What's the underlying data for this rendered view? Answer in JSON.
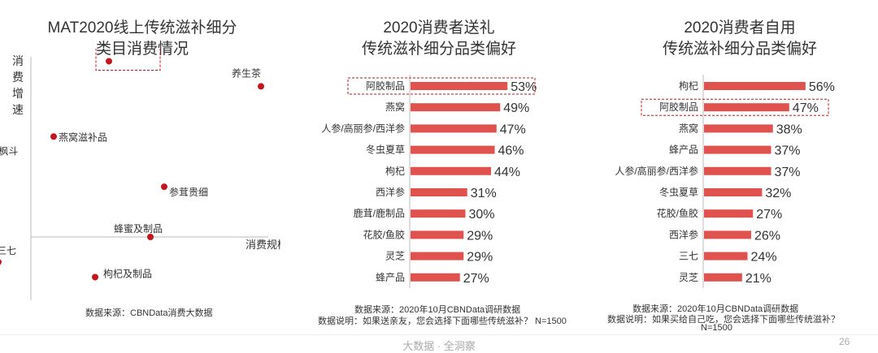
{
  "page_number": "26",
  "footer": "大数据 · 全洞察",
  "colors": {
    "bar": "#e0524e",
    "dot": "#c3161c",
    "box": "#c3161c",
    "axis": "#bbbbbb"
  },
  "chart_data": [
    {
      "type": "scatter",
      "title_lines": [
        "MAT2020线上传统滋补细分",
        "类目消费情况"
      ],
      "xlabel": "消费规模",
      "ylabel": "消费增速",
      "ylabel_chars": [
        "消",
        "费",
        "增",
        "速"
      ],
      "highlight": "阿胶制品",
      "source": "数据来源：CBNData消费大数据",
      "points": [
        {
          "label": "阿胶制品",
          "x": 0.1,
          "y": 0.35
        },
        {
          "label": "养生茶",
          "x": 0.65,
          "y": 0.3
        },
        {
          "label": "燕窝滋补品",
          "x": -0.1,
          "y": 0.2
        },
        {
          "label": "石斛/枫斗",
          "x": -0.35,
          "y": 0.2
        },
        {
          "label": "参茸贵细",
          "x": 0.3,
          "y": 0.1
        },
        {
          "label": "蜂蜜及制品",
          "x": 0.25,
          "y": 0.0
        },
        {
          "label": "三七",
          "x": -0.3,
          "y": -0.05
        },
        {
          "label": "枸杞及制品",
          "x": 0.05,
          "y": -0.08
        }
      ]
    },
    {
      "type": "bar",
      "orientation": "horizontal",
      "title_lines": [
        "2020消费者送礼",
        "传统滋补细分品类偏好"
      ],
      "categories": [
        "阿胶制品",
        "燕窝",
        "人参/高丽参/西洋参",
        "冬虫夏草",
        "枸杞",
        "西洋参",
        "鹿茸/鹿制品",
        "花胶/鱼胶",
        "灵芝",
        "蜂产品"
      ],
      "values": [
        53,
        49,
        47,
        46,
        44,
        31,
        30,
        29,
        29,
        27
      ],
      "labels": [
        "53%",
        "49%",
        "47%",
        "46%",
        "44%",
        "31%",
        "30%",
        "29%",
        "29%",
        "27%"
      ],
      "unit": "%",
      "highlight": "阿胶制品",
      "source": "数据来源：2020年10月CBNData调研数据",
      "note": "数据说明：如果送亲友，您会选择下面哪些传统滋补？ N=1500"
    },
    {
      "type": "bar",
      "orientation": "horizontal",
      "title_lines": [
        "2020消费者自用",
        "传统滋补细分品类偏好"
      ],
      "categories": [
        "枸杞",
        "阿胶制品",
        "燕窝",
        "蜂产品",
        "人参/高丽参/西洋参",
        "冬虫夏草",
        "花胶/鱼胶",
        "西洋参",
        "三七",
        "灵芝"
      ],
      "values": [
        56,
        47,
        38,
        37,
        37,
        32,
        27,
        26,
        24,
        21
      ],
      "labels": [
        "56%",
        "47%",
        "38%",
        "37%",
        "37%",
        "32%",
        "27%",
        "26%",
        "24%",
        "21%"
      ],
      "unit": "%",
      "highlight": "阿胶制品",
      "source": "数据来源：2020年10月CBNData调研数据",
      "note": "数据说明：如果买给自己吃，您会选择下面哪些传统滋补？",
      "note_n": "N=1500"
    }
  ]
}
